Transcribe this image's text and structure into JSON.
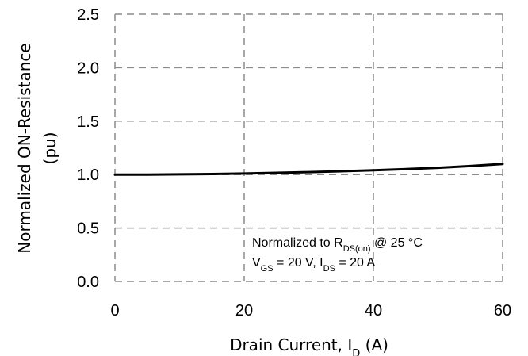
{
  "chart_data": {
    "type": "line",
    "x_axis": {
      "label_main": "Drain Current, I",
      "label_sub": "D",
      "label_tail": " (A)",
      "range": [
        0,
        60
      ],
      "ticks": [
        0,
        20,
        40,
        60
      ],
      "tick_labels": [
        "0",
        "20",
        "40",
        "60"
      ]
    },
    "y_axis": {
      "label_line1": "Normalized ON-Resistance",
      "label_line2": "(pu)",
      "range": [
        0.0,
        2.5
      ],
      "ticks": [
        0.0,
        0.5,
        1.0,
        1.5,
        2.0,
        2.5
      ],
      "tick_labels": [
        "0.0",
        "0.5",
        "1.0",
        "1.5",
        "2.0",
        "2.5"
      ]
    },
    "grid": "dashed",
    "series": [
      {
        "color": "#000000",
        "x": [
          0,
          5,
          10,
          15,
          20,
          25,
          30,
          35,
          40,
          45,
          50,
          55,
          60
        ],
        "y": [
          1.0,
          1.0,
          1.002,
          1.005,
          1.01,
          1.016,
          1.023,
          1.031,
          1.04,
          1.051,
          1.064,
          1.08,
          1.1
        ]
      }
    ],
    "annotation": {
      "line1_main": "Normalized to R",
      "line1_sub": "DS(on)",
      "line1_tail": " @ 25 °C",
      "line2_v": "V",
      "line2_v_sub": "GS",
      "line2_mid": " = 20 V, I",
      "line2_i_sub": "DS",
      "line2_tail": " = 20 A"
    }
  }
}
